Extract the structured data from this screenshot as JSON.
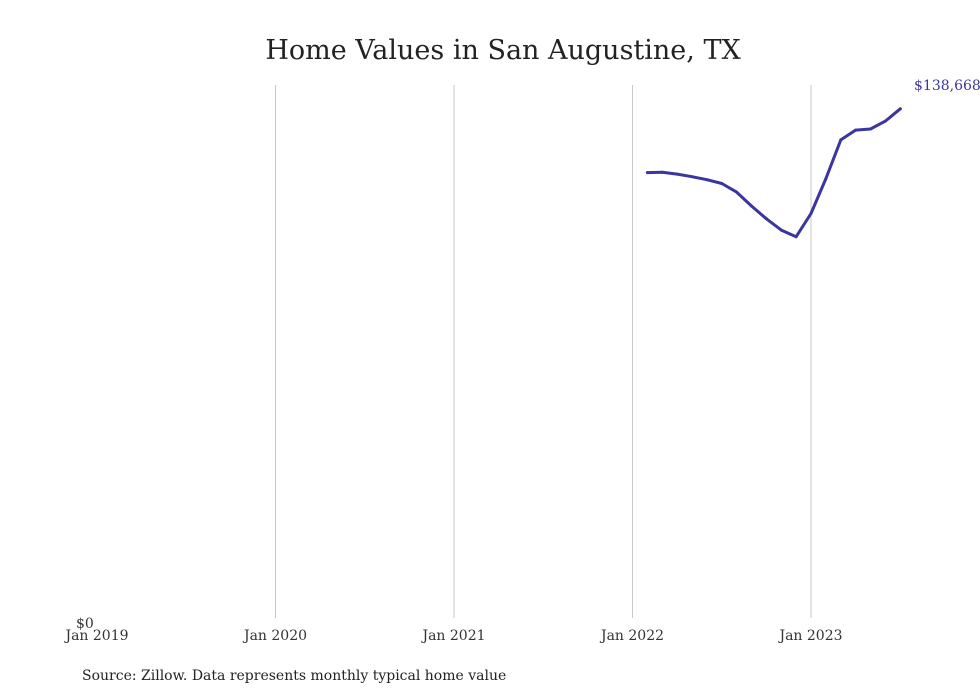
{
  "chart_data": {
    "type": "line",
    "title": "Home Values in San Augustine, TX",
    "xlabel": "",
    "ylabel": "",
    "x_ticks": [
      "Jan 2019",
      "Jan 2020",
      "Jan 2021",
      "Jan 2022",
      "Jan 2023"
    ],
    "y_ticks": [
      "$0"
    ],
    "ylim": [
      0,
      145000
    ],
    "grid": "vertical",
    "end_label": "$138,668",
    "color": "#3b35a0",
    "series": [
      {
        "x": [
          "2022-02",
          "2022-03",
          "2022-04",
          "2022-05",
          "2022-06",
          "2022-07",
          "2022-08",
          "2022-09",
          "2022-10",
          "2022-11",
          "2022-12",
          "2023-01",
          "2023-02",
          "2023-03",
          "2023-04",
          "2023-05",
          "2023-06",
          "2023-07"
        ],
        "values": [
          121700,
          121800,
          121300,
          120600,
          119800,
          118800,
          116500,
          112800,
          109400,
          106400,
          104600,
          110800,
          120100,
          130400,
          133000,
          133300,
          135400,
          138668
        ]
      }
    ]
  },
  "source_text": "Source: Zillow. Data represents monthly typical home value"
}
